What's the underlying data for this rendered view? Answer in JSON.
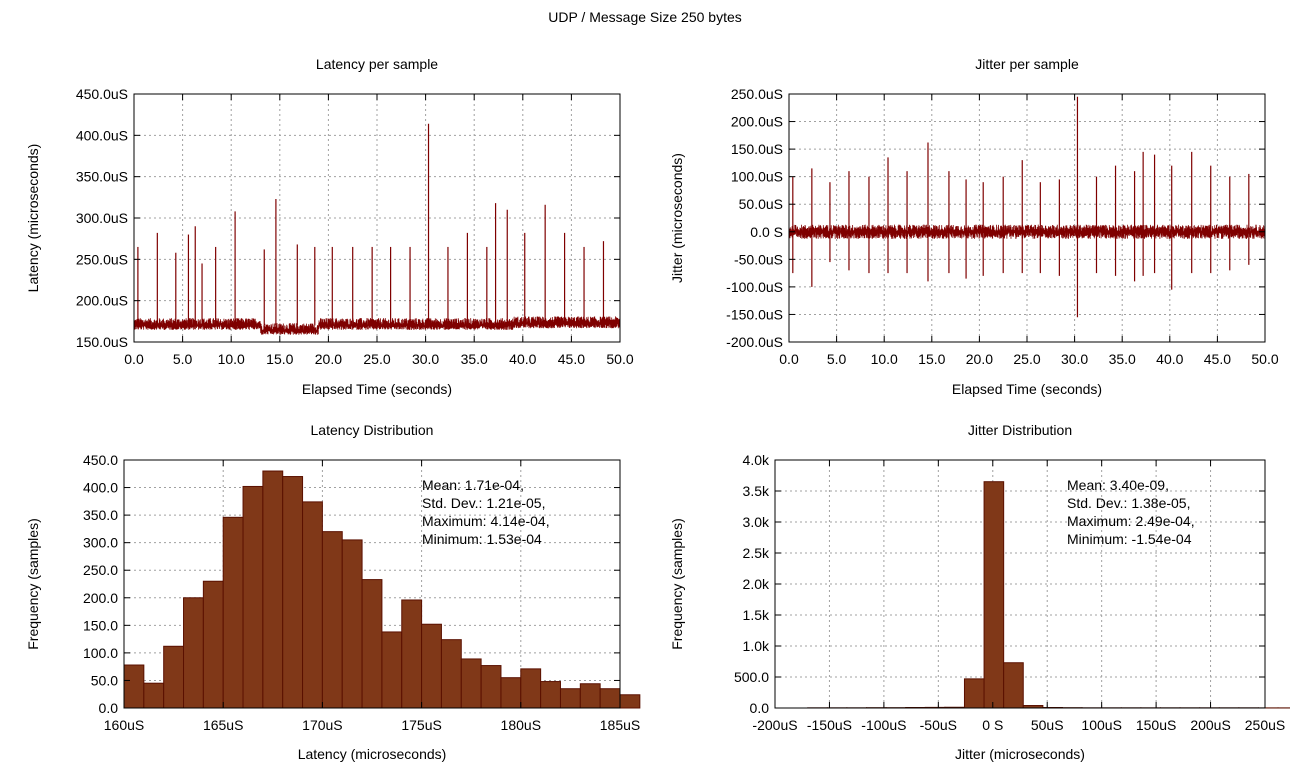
{
  "page": {
    "title": "UDP / Message Size 250 bytes"
  },
  "chart_data": [
    {
      "id": "latency_series",
      "type": "line",
      "title": "Latency per sample",
      "xlabel": "Elapsed Time (seconds)",
      "ylabel": "Latency (microseconds)",
      "xlim": [
        0,
        50
      ],
      "ylim": [
        150,
        450
      ],
      "x_ticks": [
        0,
        5,
        10,
        15,
        20,
        25,
        30,
        35,
        40,
        45,
        50
      ],
      "x_tick_labels": [
        "0.0",
        "5.0",
        "10.0",
        "15.0",
        "20.0",
        "25.0",
        "30.0",
        "35.0",
        "40.0",
        "45.0",
        "50.0"
      ],
      "y_ticks": [
        150,
        200,
        250,
        300,
        350,
        400,
        450
      ],
      "y_tick_labels": [
        "150.0uS",
        "200.0uS",
        "250.0uS",
        "300.0uS",
        "350.0uS",
        "400.0uS",
        "450.0uS"
      ],
      "grid": true,
      "color": "#7f0000",
      "baseline": 170,
      "noise": 6,
      "spikes": [
        {
          "x": 0.4,
          "y": 265
        },
        {
          "x": 2.4,
          "y": 282
        },
        {
          "x": 4.3,
          "y": 258
        },
        {
          "x": 5.6,
          "y": 280
        },
        {
          "x": 6.3,
          "y": 290
        },
        {
          "x": 7.0,
          "y": 245
        },
        {
          "x": 8.4,
          "y": 265
        },
        {
          "x": 10.4,
          "y": 308
        },
        {
          "x": 13.4,
          "y": 262
        },
        {
          "x": 14.6,
          "y": 323
        },
        {
          "x": 16.8,
          "y": 268
        },
        {
          "x": 18.6,
          "y": 265
        },
        {
          "x": 20.4,
          "y": 265
        },
        {
          "x": 22.5,
          "y": 265
        },
        {
          "x": 24.5,
          "y": 265
        },
        {
          "x": 26.4,
          "y": 265
        },
        {
          "x": 28.4,
          "y": 265
        },
        {
          "x": 30.3,
          "y": 414
        },
        {
          "x": 32.3,
          "y": 265
        },
        {
          "x": 34.3,
          "y": 282
        },
        {
          "x": 36.3,
          "y": 265
        },
        {
          "x": 37.2,
          "y": 318
        },
        {
          "x": 38.4,
          "y": 310
        },
        {
          "x": 40.2,
          "y": 282
        },
        {
          "x": 42.3,
          "y": 316
        },
        {
          "x": 44.3,
          "y": 282
        },
        {
          "x": 46.3,
          "y": 265
        },
        {
          "x": 48.3,
          "y": 272
        }
      ]
    },
    {
      "id": "jitter_series",
      "type": "line",
      "title": "Jitter per sample",
      "xlabel": "Elapsed Time (seconds)",
      "ylabel": "Jitter (microseconds)",
      "xlim": [
        0,
        50
      ],
      "ylim": [
        -200,
        250
      ],
      "x_ticks": [
        0,
        5,
        10,
        15,
        20,
        25,
        30,
        35,
        40,
        45,
        50
      ],
      "x_tick_labels": [
        "0.0",
        "5.0",
        "10.0",
        "15.0",
        "20.0",
        "25.0",
        "30.0",
        "35.0",
        "40.0",
        "45.0",
        "50.0"
      ],
      "y_ticks": [
        -200,
        -150,
        -100,
        -50,
        0,
        50,
        100,
        150,
        200,
        250
      ],
      "y_tick_labels": [
        "-200.0uS",
        "-150.0uS",
        "-100.0uS",
        "-50.0uS",
        "0.0 S",
        "50.0uS",
        "100.0uS",
        "150.0uS",
        "200.0uS",
        "250.0uS"
      ],
      "grid": true,
      "color": "#7f0000",
      "baseline": 0,
      "noise": 10,
      "spikes": [
        {
          "x": 0.4,
          "y": 100,
          "y2": -75
        },
        {
          "x": 2.4,
          "y": 115,
          "y2": -100
        },
        {
          "x": 4.3,
          "y": 90,
          "y2": -55
        },
        {
          "x": 6.3,
          "y": 110,
          "y2": -70
        },
        {
          "x": 8.4,
          "y": 100,
          "y2": -75
        },
        {
          "x": 10.4,
          "y": 135,
          "y2": -75
        },
        {
          "x": 12.4,
          "y": 110,
          "y2": -75
        },
        {
          "x": 14.6,
          "y": 162,
          "y2": -90
        },
        {
          "x": 16.8,
          "y": 110,
          "y2": -75
        },
        {
          "x": 18.6,
          "y": 95,
          "y2": -85
        },
        {
          "x": 20.4,
          "y": 90,
          "y2": -80
        },
        {
          "x": 22.5,
          "y": 100,
          "y2": -75
        },
        {
          "x": 24.5,
          "y": 130,
          "y2": -75
        },
        {
          "x": 26.4,
          "y": 90,
          "y2": -75
        },
        {
          "x": 28.4,
          "y": 95,
          "y2": -80
        },
        {
          "x": 30.3,
          "y": 245,
          "y2": -155
        },
        {
          "x": 32.3,
          "y": 100,
          "y2": -75
        },
        {
          "x": 34.3,
          "y": 120,
          "y2": -80
        },
        {
          "x": 36.3,
          "y": 110,
          "y2": -90
        },
        {
          "x": 37.2,
          "y": 145,
          "y2": -80
        },
        {
          "x": 38.4,
          "y": 140,
          "y2": -75
        },
        {
          "x": 40.2,
          "y": 120,
          "y2": -105
        },
        {
          "x": 42.3,
          "y": 145,
          "y2": -75
        },
        {
          "x": 44.3,
          "y": 120,
          "y2": -75
        },
        {
          "x": 46.3,
          "y": 100,
          "y2": -70
        },
        {
          "x": 48.3,
          "y": 105,
          "y2": -60
        }
      ]
    },
    {
      "id": "latency_hist",
      "type": "bar",
      "title": "Latency Distribution",
      "xlabel": "Latency (microseconds)",
      "ylabel": "Frequency (samples)",
      "xlim": [
        160,
        185
      ],
      "ylim": [
        0,
        450
      ],
      "x_ticks": [
        160,
        165,
        170,
        175,
        180,
        185
      ],
      "x_tick_labels": [
        "160uS",
        "165uS",
        "170uS",
        "175uS",
        "180uS",
        "185uS"
      ],
      "y_ticks": [
        0,
        50,
        100,
        150,
        200,
        250,
        300,
        350,
        400,
        450
      ],
      "y_tick_labels": [
        "0.0",
        "50.0",
        "100.0",
        "150.0",
        "200.0",
        "250.0",
        "300.0",
        "350.0",
        "400.0",
        "450.0"
      ],
      "grid": true,
      "color": "#803818",
      "bin_start": 160,
      "bin_width": 1,
      "values": [
        78,
        45,
        112,
        200,
        230,
        346,
        402,
        430,
        420,
        374,
        320,
        305,
        233,
        138,
        196,
        152,
        124,
        89,
        77,
        55,
        71,
        48,
        35,
        44,
        35,
        24
      ],
      "stats": [
        "Mean: 1.71e-04,",
        "Std. Dev.: 1.21e-05,",
        "Maximum: 4.14e-04,",
        "Minimum: 1.53e-04"
      ]
    },
    {
      "id": "jitter_hist",
      "type": "bar",
      "title": "Jitter Distribution",
      "xlabel": "Jitter (microseconds)",
      "ylabel": "Frequency (samples)",
      "xlim": [
        -200,
        250
      ],
      "ylim": [
        0,
        4000
      ],
      "x_ticks": [
        -200,
        -150,
        -100,
        -50,
        0,
        50,
        100,
        150,
        200,
        250
      ],
      "x_tick_labels": [
        "-200uS",
        "-150uS",
        "-100uS",
        "-50uS",
        "0 S",
        "50uS",
        "100uS",
        "150uS",
        "200uS",
        "250uS"
      ],
      "y_ticks": [
        0,
        500,
        1000,
        1500,
        2000,
        2500,
        3000,
        3500,
        4000
      ],
      "y_tick_labels": [
        "0.0",
        "500.0",
        "1.0k",
        "1.5k",
        "2.0k",
        "2.5k",
        "3.0k",
        "3.5k",
        "4.0k"
      ],
      "grid": true,
      "color": "#803818",
      "bin_start": -170,
      "bin_width": 18,
      "values": [
        3,
        3,
        3,
        5,
        5,
        8,
        10,
        12,
        470,
        3650,
        730,
        40,
        8,
        5,
        3,
        3,
        3,
        3,
        3,
        3,
        3,
        3,
        3,
        2,
        2
      ],
      "stats": [
        "Mean: 3.40e-09,",
        "Std. Dev.: 1.38e-05,",
        "Maximum: 2.49e-04,",
        "Minimum: -1.54e-04"
      ]
    }
  ]
}
